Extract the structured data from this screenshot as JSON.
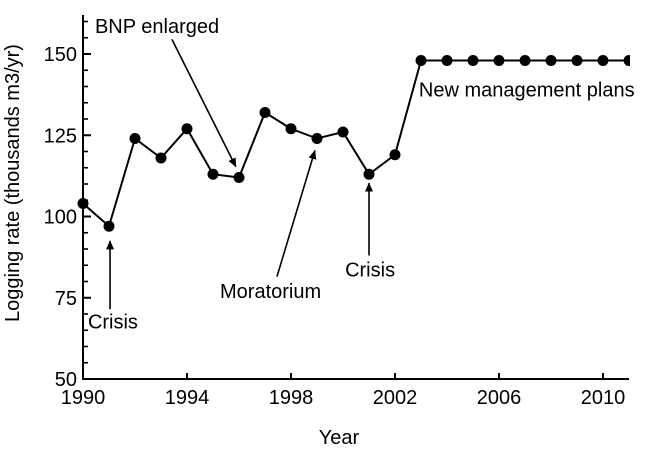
{
  "chart_data": {
    "type": "line",
    "title": "",
    "xlabel": "Year",
    "ylabel": "Logging rate (thousands m3/yr)",
    "xlim": [
      1990,
      2011
    ],
    "ylim": [
      50,
      162
    ],
    "xticks": [
      1990,
      1994,
      1998,
      2002,
      2006,
      2010
    ],
    "yticks": [
      50,
      75,
      100,
      125,
      150
    ],
    "y_minor_tick_step": 5,
    "grid": false,
    "legend": false,
    "line_color": "#000000",
    "marker": "filled-circle",
    "series": [
      {
        "name": "Logging rate",
        "x": [
          1990,
          1991,
          1992,
          1993,
          1994,
          1995,
          1996,
          1997,
          1998,
          1999,
          2000,
          2001,
          2002,
          2003,
          2004,
          2005,
          2006,
          2007,
          2008,
          2009,
          2010,
          2011
        ],
        "values": [
          104,
          97,
          124,
          118,
          127,
          113,
          112,
          132,
          127,
          124,
          126,
          113,
          119,
          148,
          148,
          148,
          148,
          148,
          148,
          148,
          148,
          148
        ]
      }
    ],
    "annotations": [
      {
        "id": "bnp-enlarged",
        "label": "BNP enlarged",
        "label_x": 1990.46,
        "label_y": 156.5,
        "arrow": {
          "x1": 1993.42,
          "y1": 154.5,
          "x2": 1995.88,
          "y2": 115.3
        }
      },
      {
        "id": "crisis-1991",
        "label": "Crisis",
        "label_x": 1990.19,
        "label_y": 65.5,
        "arrow": {
          "x1": 1991.04,
          "y1": 71.5,
          "x2": 1991.04,
          "y2": 92.5
        }
      },
      {
        "id": "moratorium",
        "label": "Moratorium",
        "label_x": 1995.27,
        "label_y": 75,
        "arrow": {
          "x1": 1997.46,
          "y1": 81.5,
          "x2": 1998.92,
          "y2": 120.3
        }
      },
      {
        "id": "crisis-2001",
        "label": "Crisis",
        "label_x": 2000.08,
        "label_y": 81.5,
        "arrow": {
          "x1": 2001.0,
          "y1": 88,
          "x2": 2001.0,
          "y2": 110.3
        }
      },
      {
        "id": "new-management-plans",
        "label": "New management plans",
        "label_x": 2002.92,
        "label_y": 137,
        "arrow": null
      }
    ]
  }
}
